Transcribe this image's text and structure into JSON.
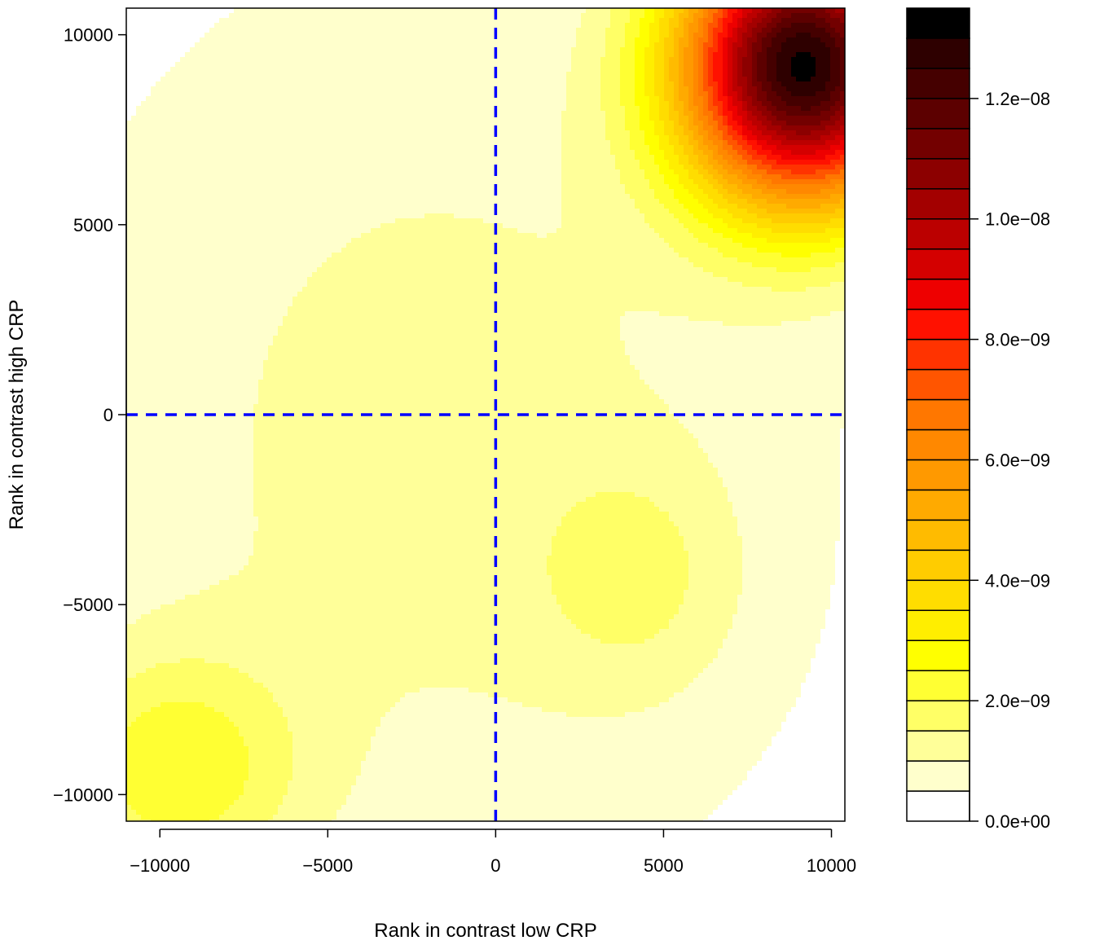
{
  "chart_data": {
    "type": "heatmap",
    "subtype": "filled-contour",
    "title": "",
    "xlabel": "Rank in contrast low CRP",
    "ylabel": "Rank in contrast high CRP",
    "xlim": [
      -11000,
      10400
    ],
    "ylim": [
      -10700,
      10700
    ],
    "xticks": [
      -10000,
      -5000,
      0,
      5000,
      10000
    ],
    "yticks": [
      -10000,
      -5000,
      0,
      5000,
      10000
    ],
    "x_tick_labels": [
      "−10000",
      "−5000",
      "0",
      "5000",
      "10000"
    ],
    "y_tick_labels": [
      "−10000",
      "−5000",
      "0",
      "5000",
      "10000"
    ],
    "reference_lines": [
      {
        "orientation": "vertical",
        "value": 0,
        "color": "#0000ff",
        "style": "dashed"
      },
      {
        "orientation": "horizontal",
        "value": 0,
        "color": "#0000ff",
        "style": "dashed"
      }
    ],
    "colorbar": {
      "min": 0,
      "max": 1.35e-08,
      "levels": 27,
      "level_step": 5e-10,
      "ticks": [
        0,
        2e-09,
        4e-09,
        6e-09,
        8e-09,
        1e-08,
        1.2e-08
      ],
      "tick_labels": [
        "0.0e+00",
        "2.0e−09",
        "4.0e−09",
        "6.0e−09",
        "8.0e−09",
        "1.0e−08",
        "1.2e−08"
      ],
      "palette": [
        "#ffffff",
        "#ffffcc",
        "#ffff99",
        "#ffff66",
        "#ffff33",
        "#ffff00",
        "#ffee00",
        "#ffdd00",
        "#ffcc00",
        "#ffbb00",
        "#ffaa00",
        "#ff9900",
        "#ff8800",
        "#ff7700",
        "#ff5500",
        "#ff3300",
        "#ff1100",
        "#ee0000",
        "#d40000",
        "#bb0000",
        "#a30000",
        "#8c0000",
        "#730000",
        "#5c0000",
        "#450000",
        "#2e0000",
        "#000000"
      ]
    },
    "density_components": [
      {
        "x": 9200,
        "y": 9200,
        "sx": 2600,
        "sy": 2600,
        "peak": 1.28e-08
      },
      {
        "x": -9600,
        "y": -9400,
        "sx": 2600,
        "sy": 2200,
        "peak": 1.9e-09
      },
      {
        "x": 4200,
        "y": -4300,
        "sx": 2200,
        "sy": 2200,
        "peak": 9e-10
      },
      {
        "x": -1800,
        "y": -800,
        "sx": 9000,
        "sy": 10000,
        "peak": 1.2e-09
      }
    ]
  }
}
